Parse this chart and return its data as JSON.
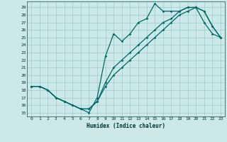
{
  "xlabel": "Humidex (Indice chaleur)",
  "bg_color": "#cce8e8",
  "grid_color": "#99cccc",
  "line_color": "#006666",
  "yticks": [
    15,
    16,
    17,
    18,
    19,
    20,
    21,
    22,
    23,
    24,
    25,
    26,
    27,
    28,
    29
  ],
  "xticks": [
    0,
    1,
    2,
    3,
    4,
    5,
    6,
    7,
    8,
    9,
    10,
    11,
    12,
    13,
    14,
    15,
    16,
    17,
    18,
    19,
    20,
    21,
    22,
    23
  ],
  "xlim": [
    -0.5,
    23.5
  ],
  "ylim": [
    14.5,
    29.8
  ],
  "line1_x": [
    0,
    1,
    2,
    3,
    4,
    5,
    6,
    7,
    8,
    9,
    10,
    11,
    12,
    13,
    14,
    15,
    16,
    17,
    18,
    19,
    20,
    21,
    22,
    23
  ],
  "line1_y": [
    18.5,
    18.5,
    18.0,
    17.0,
    16.5,
    16.0,
    15.5,
    15.0,
    17.0,
    22.5,
    25.5,
    24.5,
    25.5,
    27.0,
    27.5,
    29.5,
    28.5,
    28.5,
    28.5,
    29.0,
    29.0,
    27.0,
    25.5,
    25.0
  ],
  "line2_x": [
    0,
    1,
    2,
    3,
    4,
    5,
    6,
    7,
    8,
    9,
    10,
    11,
    12,
    13,
    14,
    15,
    16,
    17,
    18,
    19,
    20,
    21,
    22,
    23
  ],
  "line2_y": [
    18.5,
    18.5,
    18.0,
    17.0,
    16.5,
    16.0,
    15.5,
    15.5,
    16.5,
    19.0,
    21.0,
    22.0,
    23.0,
    24.0,
    25.0,
    26.0,
    27.0,
    27.5,
    28.5,
    29.0,
    29.0,
    28.5,
    26.5,
    25.0
  ],
  "line3_x": [
    0,
    1,
    2,
    3,
    4,
    5,
    6,
    7,
    8,
    9,
    10,
    11,
    12,
    13,
    14,
    15,
    16,
    17,
    18,
    19,
    20,
    21,
    22,
    23
  ],
  "line3_y": [
    18.5,
    18.5,
    18.0,
    17.0,
    16.5,
    16.0,
    15.5,
    15.5,
    16.5,
    18.5,
    20.0,
    21.0,
    22.0,
    23.0,
    24.0,
    25.0,
    26.0,
    27.0,
    28.0,
    28.5,
    29.0,
    28.5,
    26.5,
    25.0
  ]
}
